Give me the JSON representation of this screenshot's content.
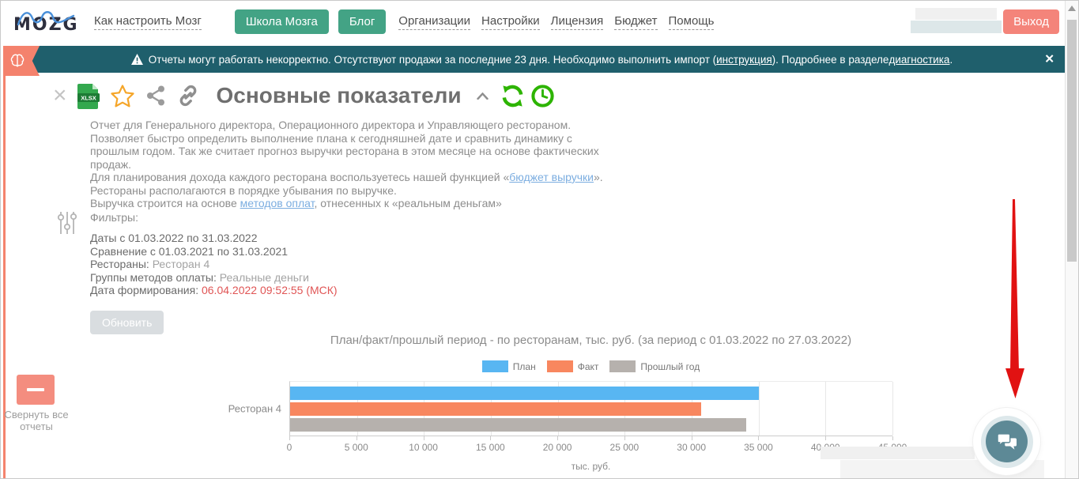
{
  "nav": {
    "logo_text": "MOZG",
    "how_to": "Как настроить Мозг",
    "school": "Школа Мозга",
    "blog": "Блог",
    "organizations": "Организации",
    "settings": "Настройки",
    "license": "Лицензия",
    "budget": "Бюджет",
    "help": "Помощь",
    "logout": "Выход"
  },
  "banner": {
    "message_start": "Отчеты могут работать некорректно. Отсутствуют продажи за последние 23 дня. Необходимо выполнить импорт (",
    "instruction_link": "инструкция",
    "message_middle": "). Подробнее в разделе ",
    "diagnostics_link": "диагностика",
    "message_end": ".",
    "close": "✕"
  },
  "report": {
    "title": "Основные показатели",
    "description_lines": [
      {
        "text": "Отчет для Генерального директора, Операционного директора и Управляющего рестораном."
      },
      {
        "text": "Позволяет быстро определить выполнение плана к сегодняшней дате и сравнить динамику с"
      },
      {
        "text": "прошлым годом. Так же считает прогноз выручки ресторана в этом месяце на основе фактических"
      },
      {
        "text": "продаж."
      },
      {
        "before": "Для планирования дохода каждого ресторана воспользуетесь нашей функцией «",
        "link": "бюджет выручки",
        "after": "»."
      },
      {
        "text": "Рестораны располагаются в порядке убывания по выручке."
      },
      {
        "before": "Выручка строится на основе ",
        "link": "методов оплат",
        "after": ", отнесенных к «реальным деньгам»"
      }
    ],
    "filters_title": "Фильтры:",
    "filters": [
      {
        "label": "Даты",
        "value": " с 01.03.2022 по 31.03.2022"
      },
      {
        "label": "Сравнение",
        "value": " с 01.03.2021 по 31.03.2021"
      },
      {
        "label": "Рестораны:",
        "value": " Ресторан 4"
      },
      {
        "label": "Группы методов оплаты:",
        "value": " Реальные деньги"
      },
      {
        "label": "Дата формирования:",
        "value": " 06.04.2022 09:52:55 (МСК)"
      }
    ],
    "refresh_button": "Обновить"
  },
  "chart_data": {
    "type": "bar",
    "orientation": "horizontal",
    "title": "План/факт/прошлый период - по ресторанам, тыс. руб. (за период с 01.03.2022 по 27.03.2022)",
    "categories": [
      "Ресторан 4"
    ],
    "series": [
      {
        "name": "План",
        "color": "#58b6f2",
        "values": [
          35000
        ]
      },
      {
        "name": "Факт",
        "color": "#f8875f",
        "values": [
          30700
        ]
      },
      {
        "name": "Прошлый год",
        "color": "#b6b1ad",
        "values": [
          34100
        ]
      }
    ],
    "xlabel": "тыс. руб.",
    "xlim": [
      0,
      45000
    ],
    "xticks": [
      "0",
      "5 000",
      "10 000",
      "15 000",
      "20 000",
      "25 000",
      "30 000",
      "35 000",
      "40 000",
      "45 000"
    ],
    "grid": true,
    "legend_position": "top"
  },
  "sidebar": {
    "collapse_all": "Свернуть все отчеты"
  },
  "colors": {
    "banner_teal": "#1f5f6c",
    "accent_green": "#43a385",
    "salmon": "#f4847a",
    "chat_teal": "#5d8996",
    "arrow_red": "#e11212",
    "date_red": "#e05555",
    "bar_plan": "#58b6f2",
    "bar_fact": "#f8875f",
    "bar_last_year": "#b6b1ad"
  }
}
